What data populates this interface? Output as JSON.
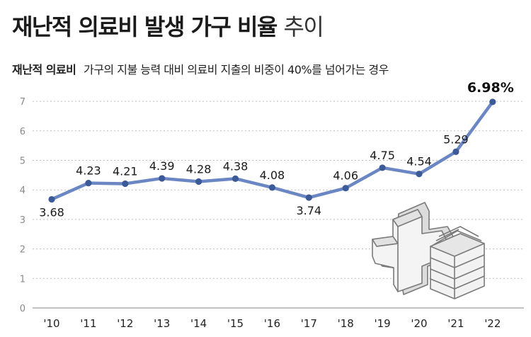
{
  "header": {
    "title_bold": "재난적 의료비 발생 가구 비율",
    "title_light": "추이",
    "subtitle_bold": "재난적 의료비",
    "subtitle_desc": "가구의 지불 능력 대비 의료비 지출의 비중이 40%를 넘어가는 경우"
  },
  "colors": {
    "line": "#6a87c4",
    "point": "#3b5a97",
    "grid": "#bdbdbd"
  },
  "illustration": {
    "name": "medical-cross-and-money-stack-icon"
  },
  "chart_data": {
    "type": "line",
    "title": "재난적 의료비 발생 가구 비율 추이",
    "xlabel": "",
    "ylabel": "",
    "categories": [
      "'10",
      "'11",
      "'12",
      "'13",
      "'14",
      "'15",
      "'16",
      "'17",
      "'18",
      "'19",
      "'20",
      "'21",
      "'22"
    ],
    "values": [
      3.68,
      4.23,
      4.21,
      4.39,
      4.28,
      4.38,
      4.08,
      3.74,
      4.06,
      4.75,
      4.54,
      5.29,
      6.98
    ],
    "value_labels": [
      "3.68",
      "4.23",
      "4.21",
      "4.39",
      "4.28",
      "4.38",
      "4.08",
      "3.74",
      "4.06",
      "4.75",
      "4.54",
      "5.29",
      "6.98%"
    ],
    "label_position": [
      "below",
      "above",
      "above",
      "above",
      "above",
      "above",
      "above",
      "below",
      "above",
      "above",
      "above",
      "above",
      "above"
    ],
    "ylim": [
      0,
      7
    ],
    "yticks": [
      "0",
      "1",
      "2",
      "3",
      "4",
      "5",
      "6",
      "7"
    ],
    "grid": true
  }
}
